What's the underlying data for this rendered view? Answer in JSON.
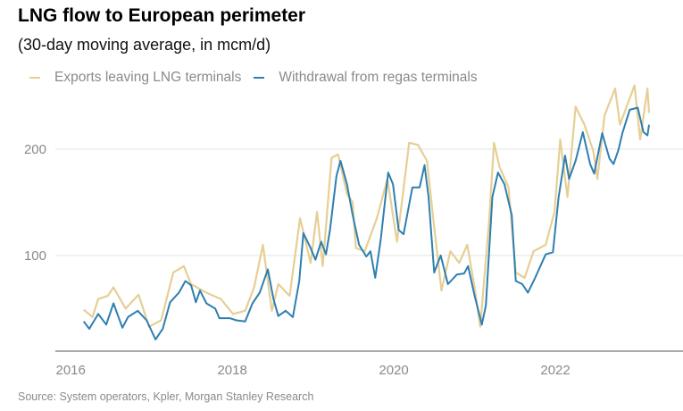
{
  "chart_data": {
    "type": "line",
    "title": "LNG flow to European perimeter",
    "subtitle": "(30-day moving average, in mcm/d)",
    "source": "Source: System operators, Kpler, Morgan Stanley Research",
    "xlabel": "",
    "ylabel": "",
    "xlim": [
      2015.81,
      2023.58
    ],
    "ylim": [
      10,
      265
    ],
    "x_ticks": [
      2016,
      2018,
      2020,
      2022
    ],
    "x_tick_labels": [
      "2016",
      "2018",
      "2020",
      "2022"
    ],
    "y_ticks": [
      100,
      200
    ],
    "y_tick_labels": [
      "100",
      "200"
    ],
    "grid": "horizontal",
    "legend": "top-left",
    "series": [
      {
        "name": "Exports leaving LNG terminals",
        "color": "#e6cf95",
        "x": [
          2016.16,
          2016.27,
          2016.34,
          2016.46,
          2016.53,
          2016.68,
          2016.84,
          2016.97,
          2017.12,
          2017.27,
          2017.4,
          2017.49,
          2017.68,
          2017.86,
          2018.01,
          2018.16,
          2018.27,
          2018.38,
          2018.49,
          2018.57,
          2018.71,
          2018.84,
          2018.97,
          2019.05,
          2019.12,
          2019.23,
          2019.31,
          2019.42,
          2019.49,
          2019.53,
          2019.64,
          2019.79,
          2019.92,
          2020.04,
          2020.19,
          2020.3,
          2020.41,
          2020.5,
          2020.59,
          2020.7,
          2020.81,
          2020.91,
          2021.0,
          2021.07,
          2021.18,
          2021.24,
          2021.31,
          2021.42,
          2021.51,
          2021.62,
          2021.73,
          2021.88,
          2021.99,
          2022.06,
          2022.15,
          2022.25,
          2022.36,
          2022.47,
          2022.52,
          2022.61,
          2022.74,
          2022.8,
          2022.98,
          2023.05,
          2023.14,
          2023.16
        ],
        "y": [
          49,
          42,
          59,
          62,
          70,
          50,
          63,
          33,
          39,
          84,
          90,
          73,
          65,
          59,
          45,
          48,
          70,
          110,
          48,
          73,
          62,
          135,
          93,
          141,
          90,
          192,
          195,
          158,
          150,
          107,
          104,
          135,
          172,
          113,
          206,
          204,
          189,
          127,
          67,
          104,
          93,
          110,
          70,
          33,
          133,
          206,
          183,
          164,
          84,
          79,
          104,
          110,
          141,
          209,
          155,
          240,
          223,
          198,
          172,
          232,
          257,
          223,
          260,
          209,
          257,
          234
        ]
      },
      {
        "name": "Withdrawal from regas terminals",
        "color": "#2e7fb0",
        "x": [
          2016.16,
          2016.23,
          2016.34,
          2016.44,
          2016.53,
          2016.64,
          2016.71,
          2016.83,
          2016.94,
          2017.05,
          2017.14,
          2017.23,
          2017.34,
          2017.42,
          2017.49,
          2017.55,
          2017.6,
          2017.68,
          2017.79,
          2017.84,
          2017.97,
          2018.05,
          2018.16,
          2018.25,
          2018.34,
          2018.44,
          2018.51,
          2018.57,
          2018.66,
          2018.75,
          2018.83,
          2018.88,
          2018.97,
          2019.03,
          2019.1,
          2019.16,
          2019.21,
          2019.29,
          2019.34,
          2019.42,
          2019.49,
          2019.57,
          2019.66,
          2019.71,
          2019.77,
          2019.84,
          2019.93,
          2019.99,
          2020.06,
          2020.12,
          2020.23,
          2020.32,
          2020.38,
          2020.43,
          2020.5,
          2020.58,
          2020.67,
          2020.78,
          2020.87,
          2020.92,
          2021.0,
          2021.09,
          2021.14,
          2021.22,
          2021.29,
          2021.37,
          2021.46,
          2021.51,
          2021.59,
          2021.66,
          2021.75,
          2021.88,
          2021.97,
          2022.04,
          2022.12,
          2022.17,
          2022.25,
          2022.34,
          2022.43,
          2022.48,
          2022.58,
          2022.67,
          2022.72,
          2022.78,
          2022.83,
          2022.92,
          2023.02,
          2023.09,
          2023.14,
          2023.16
        ],
        "y": [
          38,
          31,
          45,
          35,
          55,
          32,
          42,
          48,
          39,
          21,
          31,
          56,
          65,
          76,
          72,
          56,
          67,
          55,
          50,
          41,
          41,
          39,
          38,
          55,
          65,
          87,
          59,
          43,
          48,
          42,
          76,
          121,
          107,
          96,
          113,
          101,
          124,
          175,
          189,
          167,
          138,
          110,
          99,
          104,
          79,
          116,
          178,
          167,
          124,
          120,
          164,
          164,
          185,
          155,
          84,
          100,
          73,
          82,
          83,
          90,
          62,
          35,
          53,
          155,
          178,
          167,
          138,
          76,
          73,
          65,
          79,
          101,
          103,
          155,
          194,
          172,
          189,
          216,
          186,
          177,
          215,
          191,
          186,
          199,
          215,
          237,
          239,
          216,
          213,
          223
        ]
      }
    ]
  }
}
